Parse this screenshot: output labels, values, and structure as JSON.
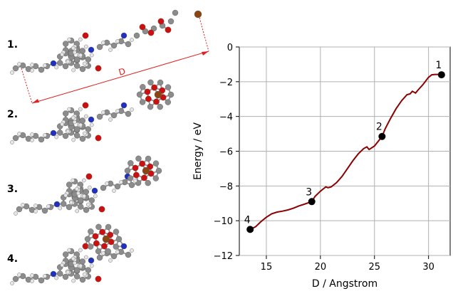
{
  "figure_panels": [
    {
      "label": "1."
    },
    {
      "label": "2."
    },
    {
      "label": "3."
    },
    {
      "label": "4."
    }
  ],
  "distance_marker_label": "D",
  "chart_data": {
    "type": "line",
    "xlabel": "D / Angstrom",
    "ylabel": "Energy / eV",
    "xlim": [
      12.5,
      32
    ],
    "ylim": [
      -12,
      0
    ],
    "xticks": [
      15,
      20,
      25,
      30
    ],
    "yticks": [
      0,
      -2,
      -4,
      -6,
      -8,
      -10,
      -12
    ],
    "grid": true,
    "line_color": "#8b0000",
    "curve": {
      "x": [
        13.5,
        14.0,
        14.5,
        15.0,
        15.5,
        16.0,
        16.5,
        17.0,
        17.5,
        18.0,
        18.5,
        19.2,
        19.5,
        20.0,
        20.5,
        20.7,
        21.0,
        21.5,
        22.0,
        22.5,
        23.0,
        23.5,
        24.0,
        24.3,
        24.5,
        25.0,
        25.7,
        26.0,
        26.5,
        27.0,
        27.5,
        28.0,
        28.3,
        28.5,
        28.8,
        29.0,
        29.5,
        30.0,
        30.3,
        30.6,
        31.0,
        31.2
      ],
      "y": [
        -10.5,
        -10.35,
        -10.05,
        -9.8,
        -9.6,
        -9.5,
        -9.45,
        -9.38,
        -9.28,
        -9.15,
        -9.05,
        -8.9,
        -8.6,
        -8.3,
        -8.05,
        -8.1,
        -8.05,
        -7.8,
        -7.45,
        -7.0,
        -6.55,
        -6.15,
        -5.85,
        -5.75,
        -5.9,
        -5.7,
        -5.15,
        -4.7,
        -4.1,
        -3.55,
        -3.1,
        -2.75,
        -2.7,
        -2.55,
        -2.65,
        -2.5,
        -2.15,
        -1.75,
        -1.6,
        -1.58,
        -1.58,
        -1.6
      ]
    },
    "points": [
      {
        "label": "1",
        "x": 31.2,
        "y": -1.6
      },
      {
        "label": "2",
        "x": 25.7,
        "y": -5.15
      },
      {
        "label": "3",
        "x": 19.2,
        "y": -8.9
      },
      {
        "label": "4",
        "x": 13.5,
        "y": -10.5
      }
    ],
    "point_color": "#000000"
  }
}
